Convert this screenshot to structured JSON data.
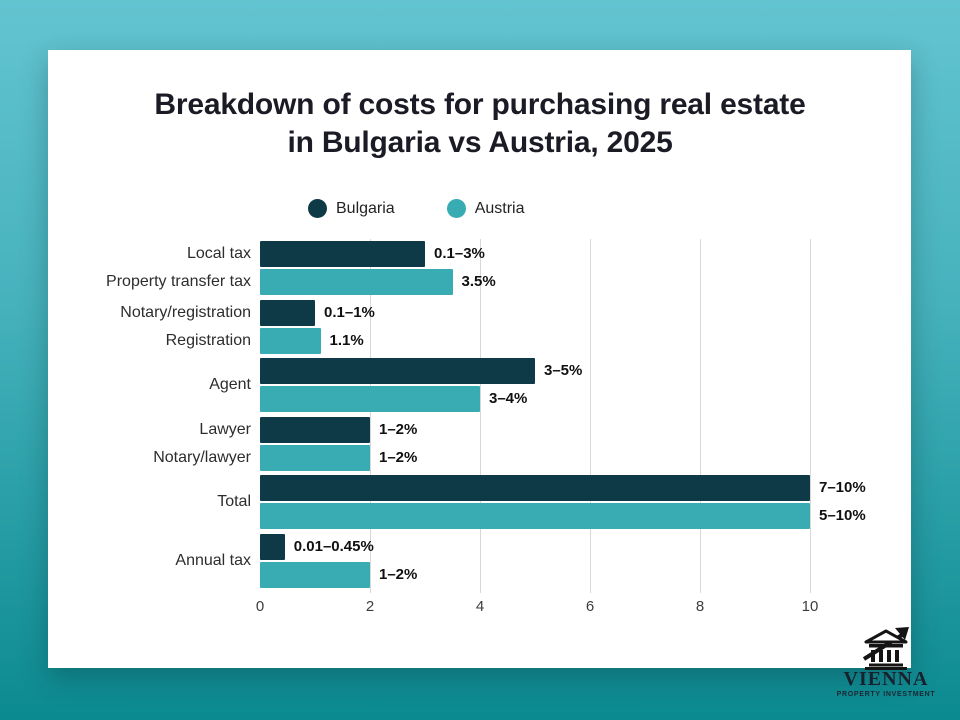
{
  "chart_data": {
    "type": "bar",
    "orientation": "horizontal",
    "title": "Breakdown of costs for purchasing real estate\nin Bulgaria vs Austria, 2025",
    "legend": [
      "Bulgaria",
      "Austria"
    ],
    "legend_position": "top",
    "series_colors": {
      "Bulgaria": "#0d3a46",
      "Austria": "#39abb3"
    },
    "xlim": [
      0,
      10
    ],
    "xticks": [
      0,
      2,
      4,
      6,
      8,
      10
    ],
    "grid": "vertical",
    "groups": [
      {
        "bars": [
          {
            "series": "Bulgaria",
            "label": "Local tax",
            "value": 3,
            "value_label": "0.1–3%"
          },
          {
            "series": "Austria",
            "label": "Property transfer tax",
            "value": 3.5,
            "value_label": "3.5%"
          }
        ]
      },
      {
        "bars": [
          {
            "series": "Bulgaria",
            "label": "Notary/registration",
            "value": 1,
            "value_label": "0.1–1%"
          },
          {
            "series": "Austria",
            "label": "Registration",
            "value": 1.1,
            "value_label": "1.1%"
          }
        ]
      },
      {
        "group_label": "Agent",
        "bars": [
          {
            "series": "Bulgaria",
            "value": 5,
            "value_label": "3–5%"
          },
          {
            "series": "Austria",
            "value": 4,
            "value_label": "3–4%"
          }
        ]
      },
      {
        "bars": [
          {
            "series": "Bulgaria",
            "label": "Lawyer",
            "value": 2,
            "value_label": "1–2%"
          },
          {
            "series": "Austria",
            "label": "Notary/lawyer",
            "value": 2,
            "value_label": "1–2%"
          }
        ]
      },
      {
        "group_label": "Total",
        "bars": [
          {
            "series": "Bulgaria",
            "value": 10,
            "value_label": "7–10%"
          },
          {
            "series": "Austria",
            "value": 10,
            "value_label": "5–10%"
          }
        ]
      },
      {
        "group_label": "Annual tax",
        "bars": [
          {
            "series": "Bulgaria",
            "value": 0.45,
            "value_label": "0.01–0.45%"
          },
          {
            "series": "Austria",
            "value": 2,
            "value_label": "1–2%"
          }
        ]
      }
    ]
  },
  "logo": {
    "brand": "VIENNA",
    "tagline": "PROPERTY INVESTMENT",
    "icon": "classical-building-growth-arrow"
  },
  "colors": {
    "background_top": "#63c4d0",
    "background_bottom": "#0b8a8f",
    "card": "#ffffff",
    "bulgaria": "#0d3a46",
    "austria": "#39abb3",
    "gridline": "#d8d8d8",
    "title_text": "#1b1b26"
  }
}
